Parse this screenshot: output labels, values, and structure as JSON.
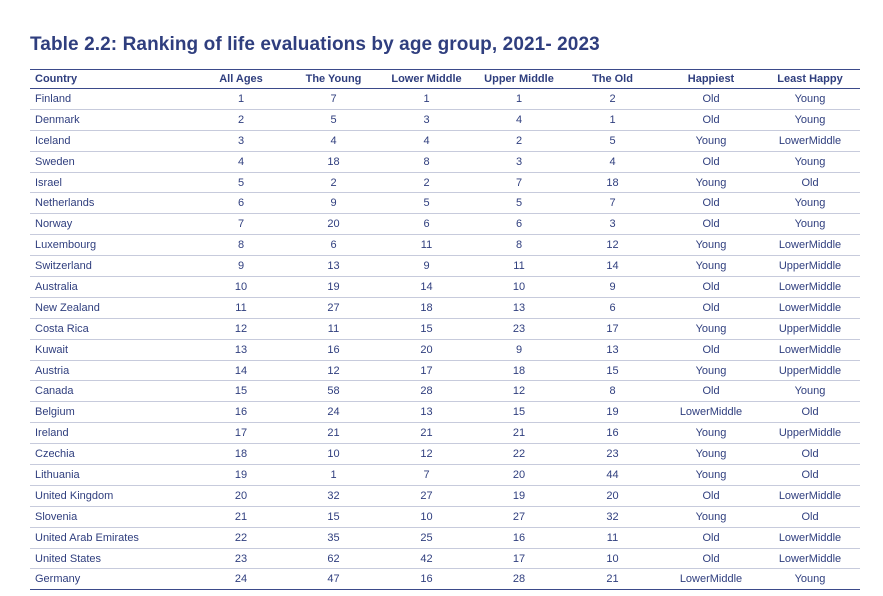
{
  "title": "Table 2.2: Ranking of life evaluations by age group, 2021- 2023",
  "columns": [
    "Country",
    "All Ages",
    "The Young",
    "Lower Middle",
    "Upper Middle",
    "The Old",
    "Happiest",
    "Least Happy"
  ],
  "rows": [
    [
      "Finland",
      "1",
      "7",
      "1",
      "1",
      "2",
      "Old",
      "Young"
    ],
    [
      "Denmark",
      "2",
      "5",
      "3",
      "4",
      "1",
      "Old",
      "Young"
    ],
    [
      "Iceland",
      "3",
      "4",
      "4",
      "2",
      "5",
      "Young",
      "LowerMiddle"
    ],
    [
      "Sweden",
      "4",
      "18",
      "8",
      "3",
      "4",
      "Old",
      "Young"
    ],
    [
      "Israel",
      "5",
      "2",
      "2",
      "7",
      "18",
      "Young",
      "Old"
    ],
    [
      "Netherlands",
      "6",
      "9",
      "5",
      "5",
      "7",
      "Old",
      "Young"
    ],
    [
      "Norway",
      "7",
      "20",
      "6",
      "6",
      "3",
      "Old",
      "Young"
    ],
    [
      "Luxembourg",
      "8",
      "6",
      "11",
      "8",
      "12",
      "Young",
      "LowerMiddle"
    ],
    [
      "Switzerland",
      "9",
      "13",
      "9",
      "11",
      "14",
      "Young",
      "UpperMiddle"
    ],
    [
      "Australia",
      "10",
      "19",
      "14",
      "10",
      "9",
      "Old",
      "LowerMiddle"
    ],
    [
      "New Zealand",
      "11",
      "27",
      "18",
      "13",
      "6",
      "Old",
      "LowerMiddle"
    ],
    [
      "Costa Rica",
      "12",
      "11",
      "15",
      "23",
      "17",
      "Young",
      "UpperMiddle"
    ],
    [
      "Kuwait",
      "13",
      "16",
      "20",
      "9",
      "13",
      "Old",
      "LowerMiddle"
    ],
    [
      "Austria",
      "14",
      "12",
      "17",
      "18",
      "15",
      "Young",
      "UpperMiddle"
    ],
    [
      "Canada",
      "15",
      "58",
      "28",
      "12",
      "8",
      "Old",
      "Young"
    ],
    [
      "Belgium",
      "16",
      "24",
      "13",
      "15",
      "19",
      "LowerMiddle",
      "Old"
    ],
    [
      "Ireland",
      "17",
      "21",
      "21",
      "21",
      "16",
      "Young",
      "UpperMiddle"
    ],
    [
      "Czechia",
      "18",
      "10",
      "12",
      "22",
      "23",
      "Young",
      "Old"
    ],
    [
      "Lithuania",
      "19",
      "1",
      "7",
      "20",
      "44",
      "Young",
      "Old"
    ],
    [
      "United Kingdom",
      "20",
      "32",
      "27",
      "19",
      "20",
      "Old",
      "LowerMiddle"
    ],
    [
      "Slovenia",
      "21",
      "15",
      "10",
      "27",
      "32",
      "Young",
      "Old"
    ],
    [
      "United Arab Emirates",
      "22",
      "35",
      "25",
      "16",
      "11",
      "Old",
      "LowerMiddle"
    ],
    [
      "United States",
      "23",
      "62",
      "42",
      "17",
      "10",
      "Old",
      "LowerMiddle"
    ],
    [
      "Germany",
      "24",
      "47",
      "16",
      "28",
      "21",
      "LowerMiddle",
      "Young"
    ]
  ]
}
